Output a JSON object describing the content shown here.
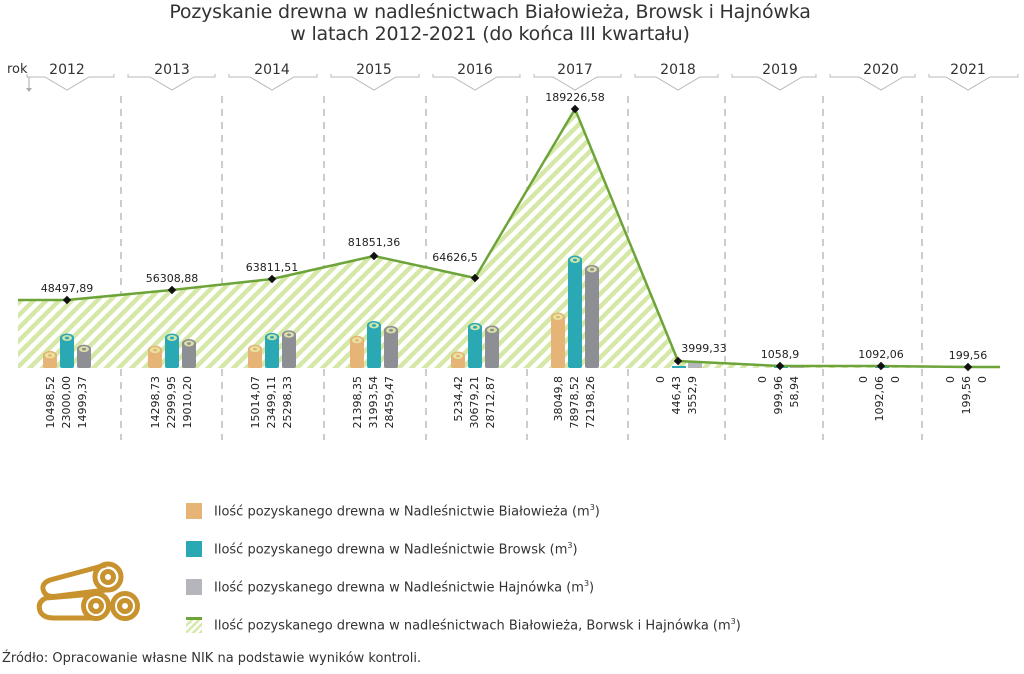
{
  "title": {
    "line1": "Pozyskanie drewna w nadleśnictwach Białowieża, Browsk i Hajnówka",
    "line2": "w latach 2012-2021 (do końca III kwartału)"
  },
  "axis": {
    "year_label": "rok"
  },
  "colors": {
    "bialowieza": "#e5b476",
    "browsk": "#2aa8b4",
    "hajnowka": "#8e8f94",
    "total_line": "#6da43a",
    "total_fill_stripe": "#d6e8a8",
    "logs_icon": "#c8922e"
  },
  "legend": {
    "items": [
      {
        "key": "bialowieza",
        "label": "Ilość pozyskanego drewna w Nadleśnictwie Białowieża (m",
        "sup": "3",
        "close": ")"
      },
      {
        "key": "browsk",
        "label": "Ilość pozyskanego drewna w Nadleśnictwie Browsk (m",
        "sup": "3",
        "close": ")"
      },
      {
        "key": "hajnowka",
        "label": "Ilość pozyskanego drewna w Nadleśnictwie Hajnówka (m",
        "sup": "3",
        "close": ")"
      },
      {
        "key": "total",
        "label": "Ilość pozyskanego drewna w nadleśnictwach Białowieża, Borwsk i Hajnówka (m",
        "sup": "3",
        "close": ")"
      }
    ]
  },
  "source": "Źródło: Opracowanie własne NIK na podstawie wyników kontroli.",
  "chart_data": {
    "type": "bar",
    "title": "Pozyskanie drewna w nadleśnictwach Białowieża, Browsk i Hajnówka w latach 2012-2021 (do końca III kwartału)",
    "xlabel": "rok",
    "ylabel": "m³",
    "categories": [
      "2012",
      "2013",
      "2014",
      "2015",
      "2016",
      "2017",
      "2018",
      "2019",
      "2020",
      "2021"
    ],
    "series": [
      {
        "name": "Ilość pozyskanego drewna w Nadleśnictwie Białowieża (m³)",
        "type": "bar",
        "color": "#e5b476",
        "values": [
          10498.52,
          14298.73,
          15014.07,
          21398.35,
          5234.42,
          38049.8,
          0,
          0,
          0,
          0
        ],
        "labels": [
          "10498,52",
          "14298,73",
          "15014,07",
          "21398,35",
          "5234,42",
          "38049,8",
          "0",
          "0",
          "0",
          "0"
        ]
      },
      {
        "name": "Ilość pozyskanego drewna w Nadleśnictwie Browsk (m³)",
        "type": "bar",
        "color": "#2aa8b4",
        "values": [
          23000.0,
          22999.95,
          23499.11,
          31993.54,
          30679.21,
          78978.52,
          446.43,
          999.96,
          1092.06,
          199.56
        ],
        "labels": [
          "23000,00",
          "22999,95",
          "23499,11",
          "31993,54",
          "30679,21",
          "78978,52",
          "446,43",
          "999,96",
          "1092,06",
          "199,56"
        ]
      },
      {
        "name": "Ilość pozyskanego drewna w Nadleśnictwie Hajnówka (m³)",
        "type": "bar",
        "color": "#8e8f94",
        "values": [
          14999.37,
          19010.2,
          25298.33,
          28459.47,
          28712.87,
          72198.26,
          3552.9,
          58.94,
          0,
          0
        ],
        "labels": [
          "14999,37",
          "19010,20",
          "25298,33",
          "28459,47",
          "28712,87",
          "72198,26",
          "3552,9",
          "58,94",
          "0",
          "0"
        ]
      },
      {
        "name": "Ilość pozyskanego drewna w nadleśnictwach Białowieża, Borwsk i Hajnówka (m³)",
        "type": "area",
        "color": "#6da43a",
        "values": [
          48497.89,
          56308.88,
          63811.51,
          81851.36,
          64626.5,
          189226.58,
          3999.33,
          1058.9,
          1092.06,
          199.56
        ],
        "labels": [
          "48497,89",
          "56308,88",
          "63811,51",
          "81851,36",
          "64626,5",
          "189226,58",
          "3999,33",
          "1058,9",
          "1092,06",
          "199,56"
        ]
      }
    ],
    "legend_position": "bottom",
    "grid": false
  }
}
